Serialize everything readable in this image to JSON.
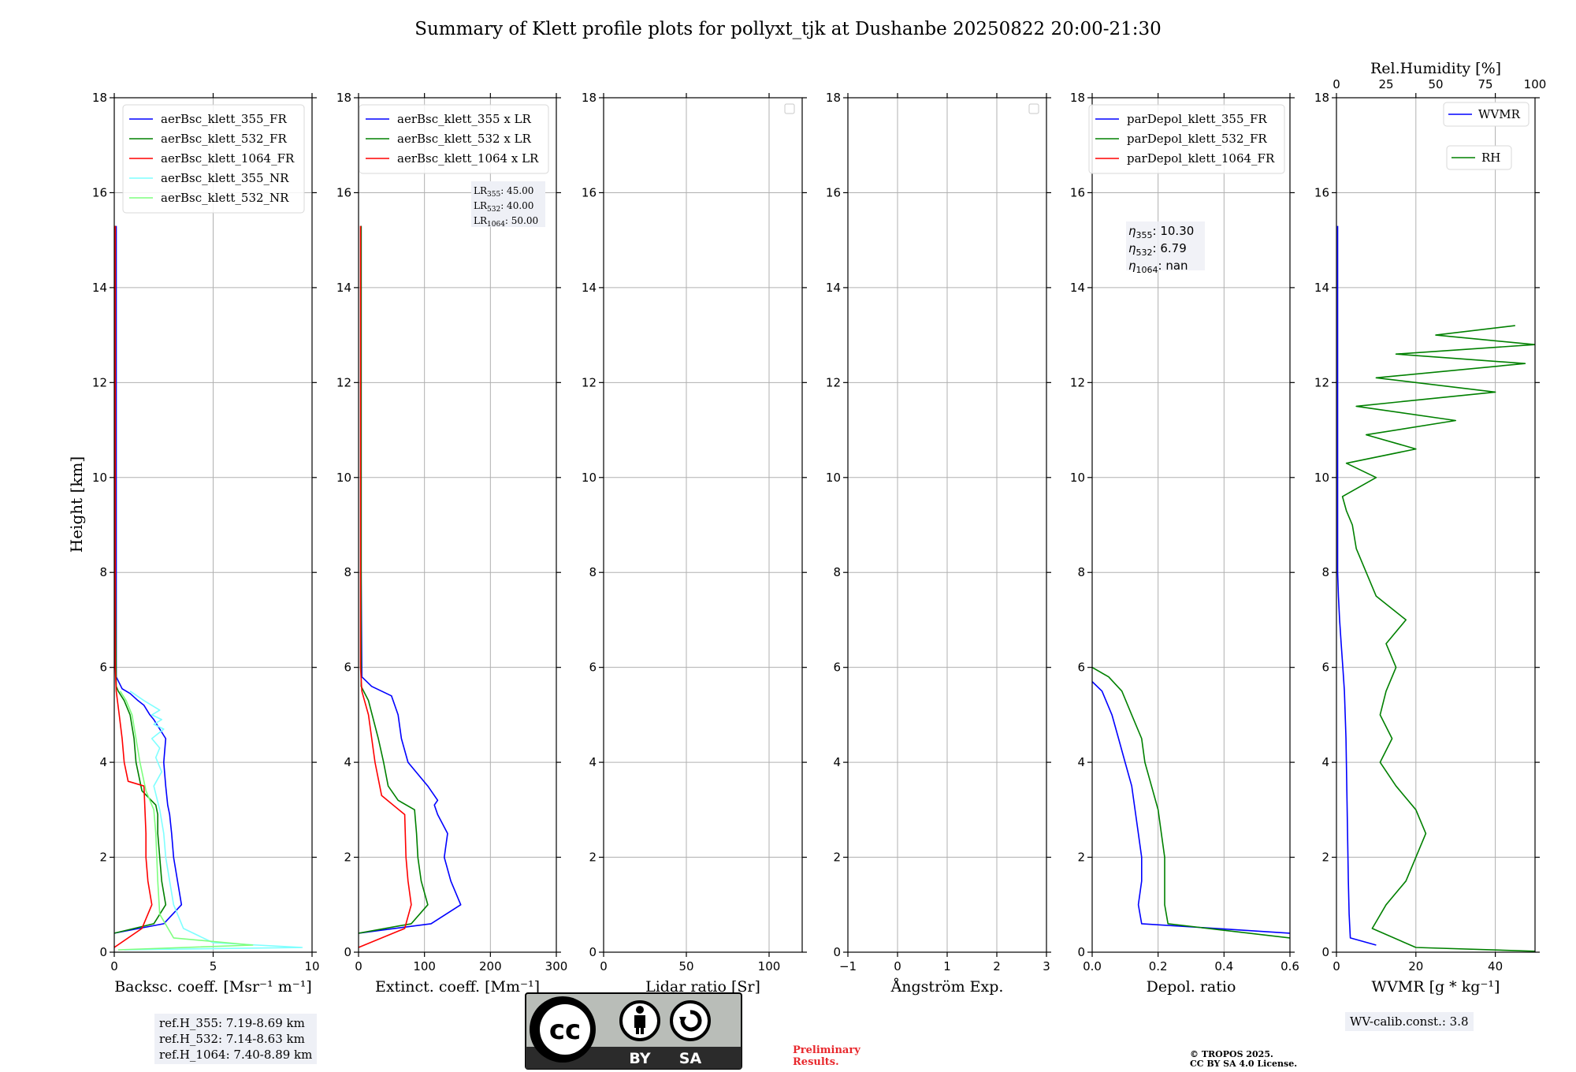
{
  "title": "Summary of Klett profile plots for pollyxt_tjk at Dushanbe 20250822 20:00-21:30",
  "ylabel": "Height [km]",
  "ref_box": [
    "ref.H_355: 7.19-8.69 km",
    "ref.H_532: 7.14-8.63 km",
    "ref.H_1064: 7.40-8.89 km"
  ],
  "wv_box": "WV-calib.const.: 3.8",
  "preliminary": [
    "Preliminary",
    "Results."
  ],
  "tropos": [
    "© TROPOS 2025.",
    "CC BY SA 4.0 License."
  ],
  "license_badge": {
    "cc": "cc",
    "by": "BY",
    "sa": "SA"
  },
  "colors": {
    "blue": "#0000ff",
    "green": "#008000",
    "red": "#ff0000",
    "cyan": "#7fffff",
    "lightgreen": "#7fff7f",
    "grid": "#b0b0b0",
    "box": "#eef0f6"
  },
  "chart_data": [
    {
      "type": "line",
      "xlabel": "Backsc. coeff. [Msr⁻¹ m⁻¹]",
      "xlim": [
        0,
        10
      ],
      "xticks": [
        0,
        5,
        10
      ],
      "ylim": [
        0,
        18
      ],
      "yticks": [
        0,
        2,
        4,
        6,
        8,
        10,
        12,
        14,
        16,
        18
      ],
      "grid": true,
      "legend": "top-left",
      "series": [
        {
          "name": "aerBsc_klett_355_FR",
          "color": "#0000ff",
          "x": [
            0.0,
            2.5,
            3.4,
            3.2,
            3.0,
            2.9,
            2.8,
            2.7,
            2.6,
            2.5,
            2.6,
            2.0,
            1.8,
            1.5,
            1.2,
            0.8,
            0.4,
            0.1,
            0.1,
            0.1,
            0.1,
            0.1,
            0.1,
            0.1,
            0.1
          ],
          "y": [
            0.4,
            0.6,
            1.0,
            1.5,
            2.0,
            2.5,
            2.9,
            3.1,
            3.5,
            4.0,
            4.5,
            4.9,
            5.0,
            5.2,
            5.3,
            5.45,
            5.55,
            5.8,
            7.0,
            8.0,
            9.0,
            10.8,
            12.0,
            13.0,
            15.3
          ]
        },
        {
          "name": "aerBsc_klett_532_FR",
          "color": "#008000",
          "x": [
            0.0,
            2.0,
            2.6,
            2.4,
            2.3,
            2.2,
            2.2,
            2.1,
            1.4,
            1.1,
            1.0,
            0.8,
            0.5,
            0.2,
            0.1,
            0.05,
            0.05
          ],
          "y": [
            0.4,
            0.6,
            1.0,
            1.5,
            2.0,
            2.5,
            2.9,
            3.1,
            3.4,
            4.0,
            4.5,
            5.0,
            5.3,
            5.5,
            5.6,
            8.0,
            15.3
          ]
        },
        {
          "name": "aerBsc_klett_1064_FR",
          "color": "#ff0000",
          "x": [
            0.0,
            1.4,
            1.9,
            1.7,
            1.6,
            1.6,
            1.5,
            0.7,
            0.5,
            0.4,
            0.25,
            0.1,
            0.05,
            0.05
          ],
          "y": [
            0.1,
            0.5,
            1.0,
            1.5,
            2.0,
            2.5,
            3.5,
            3.6,
            4.0,
            4.5,
            5.0,
            5.5,
            6.0,
            15.3
          ]
        },
        {
          "name": "aerBsc_klett_355_NR",
          "color": "#7fffff",
          "x": [
            0.5,
            9.5,
            5.0,
            3.5,
            3.0,
            2.8,
            2.6,
            2.5,
            2.3,
            2.0,
            2.4,
            2.1,
            2.3,
            1.9,
            2.5,
            2.0,
            2.4,
            1.9,
            2.3,
            1.5,
            0.8
          ],
          "y": [
            0.05,
            0.1,
            0.2,
            0.5,
            1.0,
            1.5,
            2.0,
            2.5,
            3.0,
            3.5,
            3.8,
            4.1,
            4.3,
            4.5,
            4.7,
            4.8,
            4.9,
            5.0,
            5.1,
            5.3,
            5.5
          ]
        },
        {
          "name": "aerBsc_klett_532_NR",
          "color": "#7fff7f",
          "x": [
            0.2,
            7.0,
            3.0,
            2.3,
            2.2,
            2.1,
            2.0,
            1.6,
            1.3,
            1.1,
            0.9,
            0.6,
            0.3
          ],
          "y": [
            0.05,
            0.15,
            0.3,
            0.8,
            1.5,
            2.5,
            3.0,
            3.4,
            4.0,
            4.5,
            5.0,
            5.3,
            5.5
          ]
        }
      ]
    },
    {
      "type": "line",
      "xlabel": "Extinct. coeff. [Mm⁻¹]",
      "xlim": [
        0,
        300
      ],
      "xticks": [
        0,
        100,
        200,
        300
      ],
      "ylim": [
        0,
        18
      ],
      "yticks": [
        0,
        2,
        4,
        6,
        8,
        10,
        12,
        14,
        16,
        18
      ],
      "grid": true,
      "legend": "top-left",
      "annotation": [
        "45.00",
        "40.00",
        "50.00"
      ],
      "series": [
        {
          "name": "aerBsc_klett_355 x LR",
          "color": "#0000ff",
          "x": [
            0,
            110,
            155,
            140,
            130,
            135,
            120,
            115,
            120,
            105,
            75,
            65,
            60,
            50,
            20,
            5,
            4,
            4,
            4,
            4
          ],
          "y": [
            0.4,
            0.6,
            1.0,
            1.5,
            2.0,
            2.5,
            2.9,
            3.1,
            3.2,
            3.5,
            4.0,
            4.5,
            5.0,
            5.4,
            5.6,
            5.8,
            8.0,
            10.8,
            13.0,
            15.3
          ]
        },
        {
          "name": "aerBsc_klett_532 x LR",
          "color": "#008000",
          "x": [
            0,
            80,
            105,
            95,
            90,
            88,
            85,
            60,
            45,
            38,
            30,
            15,
            4,
            4
          ],
          "y": [
            0.4,
            0.6,
            1.0,
            1.5,
            2.0,
            2.5,
            3.0,
            3.2,
            3.5,
            4.0,
            4.5,
            5.3,
            5.6,
            15.3
          ]
        },
        {
          "name": "aerBsc_klett_1064 x LR",
          "color": "#ff0000",
          "x": [
            0,
            70,
            80,
            75,
            72,
            70,
            35,
            25,
            15,
            5,
            3,
            3
          ],
          "y": [
            0.1,
            0.5,
            1.0,
            1.5,
            2.0,
            2.9,
            3.3,
            4.0,
            5.0,
            5.5,
            6.0,
            15.3
          ]
        }
      ]
    },
    {
      "type": "line",
      "xlabel": "Lidar ratio [Sr]",
      "xlim": [
        0,
        120
      ],
      "xticks": [
        0,
        50,
        100
      ],
      "ylim": [
        0,
        18
      ],
      "yticks": [
        0,
        2,
        4,
        6,
        8,
        10,
        12,
        14,
        16,
        18
      ],
      "grid": true,
      "legend": "top-right",
      "series": []
    },
    {
      "type": "line",
      "xlabel": "Ångström Exp.",
      "xlim": [
        -1,
        3
      ],
      "xticks": [
        -1,
        0,
        1,
        2,
        3
      ],
      "ylim": [
        0,
        18
      ],
      "yticks": [
        0,
        2,
        4,
        6,
        8,
        10,
        12,
        14,
        16,
        18
      ],
      "grid": true,
      "legend": "top-right",
      "series": []
    },
    {
      "type": "line",
      "xlabel": "Depol. ratio",
      "xlim": [
        0,
        0.6
      ],
      "xticks": [
        0.0,
        0.2,
        0.4,
        0.6
      ],
      "xticklabels": [
        "0.0",
        "0.2",
        "0.4",
        "0.6"
      ],
      "ylim": [
        0,
        18
      ],
      "yticks": [
        0,
        2,
        4,
        6,
        8,
        10,
        12,
        14,
        16,
        18
      ],
      "grid": true,
      "legend": "top-left",
      "annotation": [
        "10.30",
        "6.79",
        "nan"
      ],
      "series": [
        {
          "name": "parDepol_klett_355_FR",
          "color": "#0000ff",
          "x": [
            0.6,
            0.15,
            0.14,
            0.15,
            0.15,
            0.14,
            0.13,
            0.12,
            0.1,
            0.08,
            0.06,
            0.03,
            0.0
          ],
          "y": [
            0.4,
            0.6,
            1.0,
            1.5,
            2.0,
            2.5,
            3.0,
            3.5,
            4.0,
            4.5,
            5.0,
            5.5,
            5.7
          ]
        },
        {
          "name": "parDepol_klett_532_FR",
          "color": "#008000",
          "x": [
            0.6,
            0.23,
            0.22,
            0.22,
            0.22,
            0.21,
            0.2,
            0.18,
            0.16,
            0.15,
            0.12,
            0.09,
            0.05,
            0.0
          ],
          "y": [
            0.3,
            0.6,
            1.0,
            1.5,
            2.0,
            2.5,
            3.0,
            3.5,
            4.0,
            4.5,
            5.0,
            5.5,
            5.8,
            6.0
          ]
        }
      ],
      "legend_entries": [
        "parDepol_klett_355_FR",
        "parDepol_klett_532_FR",
        "parDepol_klett_1064_FR"
      ]
    },
    {
      "type": "line",
      "xlabel": "WVMR [g * kg⁻¹]",
      "x2label": "Rel.Humidity [%]",
      "xlim": [
        0,
        50
      ],
      "xticks": [
        0,
        20,
        40
      ],
      "x2lim": [
        0,
        100
      ],
      "x2ticks": [
        0,
        25,
        50,
        75,
        100
      ],
      "ylim": [
        0,
        18
      ],
      "yticks": [
        0,
        2,
        4,
        6,
        8,
        10,
        12,
        14,
        16,
        18
      ],
      "grid": true,
      "legend": "top-right",
      "series": [
        {
          "name": "WVMR",
          "color": "#0000ff",
          "x": [
            10.0,
            3.5,
            3.2,
            3.0,
            2.8,
            2.6,
            2.4,
            2.0,
            1.6,
            1.2,
            0.8,
            0.5,
            0.3,
            0.3,
            0.3
          ],
          "y": [
            0.15,
            0.3,
            0.8,
            1.5,
            2.5,
            3.5,
            4.5,
            5.5,
            6.0,
            6.5,
            7.0,
            7.5,
            8.0,
            12.0,
            15.3
          ]
        },
        {
          "name": "RH",
          "color": "#008000",
          "axis": "x2",
          "x": [
            100,
            40,
            18,
            25,
            35,
            40,
            45,
            40,
            30,
            22,
            28,
            22,
            25,
            30,
            25,
            35,
            20,
            15,
            10,
            8,
            5,
            3,
            20,
            5,
            40,
            15,
            60,
            10,
            80,
            20,
            95,
            30,
            100,
            50,
            90
          ],
          "y": [
            0.02,
            0.1,
            0.5,
            1.0,
            1.5,
            2.0,
            2.5,
            3.0,
            3.5,
            4.0,
            4.5,
            5.0,
            5.5,
            6.0,
            6.5,
            7.0,
            7.5,
            8.0,
            8.5,
            9.0,
            9.3,
            9.6,
            10.0,
            10.3,
            10.6,
            10.9,
            11.2,
            11.5,
            11.8,
            12.1,
            12.4,
            12.6,
            12.8,
            13.0,
            13.2
          ]
        }
      ]
    }
  ]
}
